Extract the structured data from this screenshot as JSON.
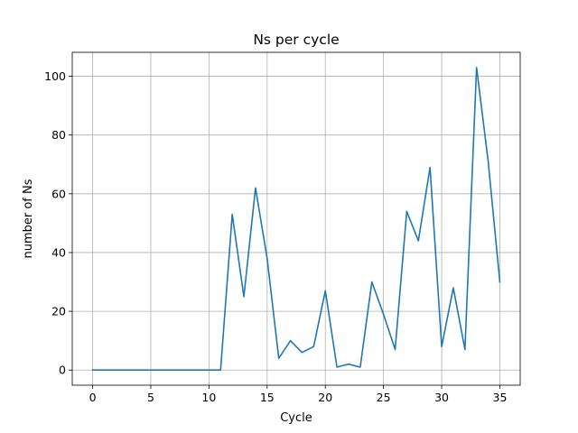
{
  "chart_data": {
    "type": "line",
    "title": "Ns per cycle",
    "xlabel": "Cycle",
    "ylabel": "number of Ns",
    "xlim": [
      -1.75,
      36.75
    ],
    "ylim": [
      -5.15,
      108.15
    ],
    "xticks": [
      0,
      5,
      10,
      15,
      20,
      25,
      30,
      35
    ],
    "yticks": [
      0,
      20,
      40,
      60,
      80,
      100
    ],
    "grid": true,
    "series": [
      {
        "color": "#1f77b4",
        "x": [
          0,
          1,
          2,
          3,
          4,
          5,
          6,
          7,
          8,
          9,
          10,
          11,
          12,
          13,
          14,
          15,
          16,
          17,
          18,
          19,
          20,
          21,
          22,
          23,
          24,
          25,
          26,
          27,
          28,
          29,
          30,
          31,
          32,
          33,
          34,
          35
        ],
        "y": [
          0,
          0,
          0,
          0,
          0,
          0,
          0,
          0,
          0,
          0,
          0,
          0,
          53,
          25,
          62,
          38,
          4,
          10,
          6,
          8,
          27,
          1,
          2,
          1,
          30,
          19,
          7,
          54,
          44,
          69,
          8,
          28,
          7,
          103,
          71,
          30
        ]
      }
    ]
  }
}
